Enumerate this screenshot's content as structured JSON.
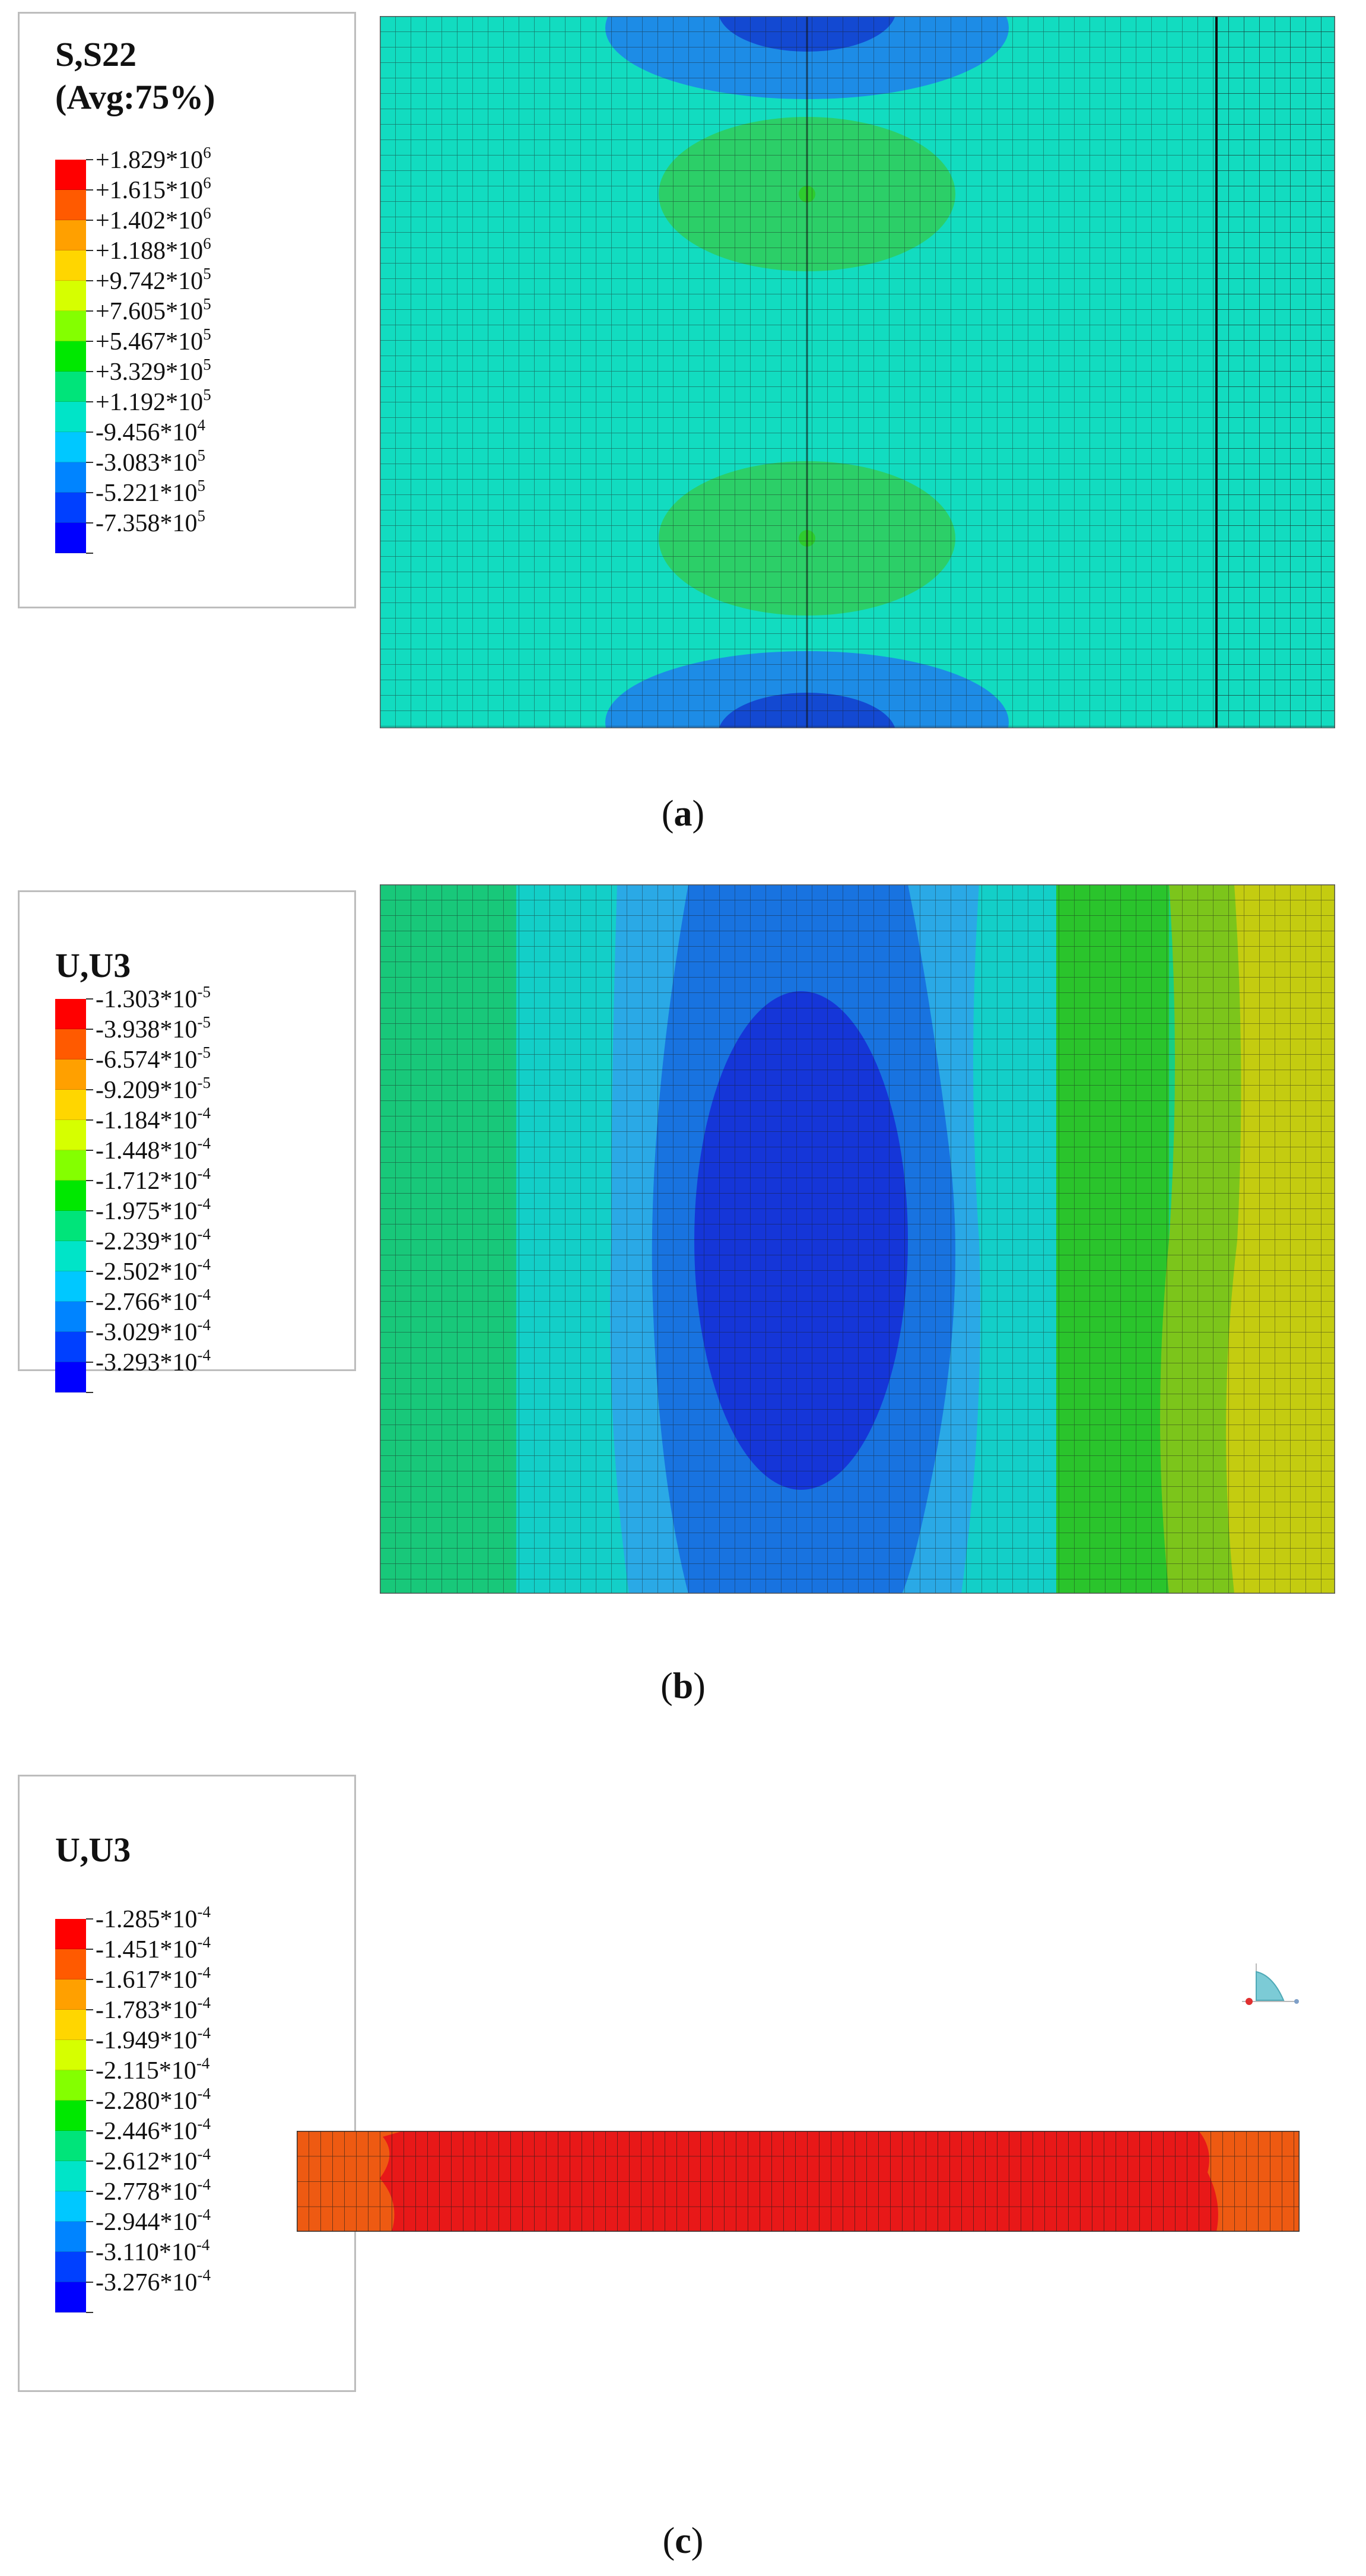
{
  "figures": [
    {
      "id": "a",
      "legend": {
        "title_lines": [
          "S,S22",
          "(Avg:75%)"
        ],
        "entries": [
          {
            "mantissa": "+1.829*10",
            "exp": "6"
          },
          {
            "mantissa": "+1.615*10",
            "exp": "6"
          },
          {
            "mantissa": "+1.402*10",
            "exp": "6"
          },
          {
            "mantissa": "+1.188*10",
            "exp": "6"
          },
          {
            "mantissa": "+9.742*10",
            "exp": "5"
          },
          {
            "mantissa": "+7.605*10",
            "exp": "5"
          },
          {
            "mantissa": "+5.467*10",
            "exp": "5"
          },
          {
            "mantissa": "+3.329*10",
            "exp": "5"
          },
          {
            "mantissa": "+1.192*10",
            "exp": "5"
          },
          {
            "mantissa": "-9.456*10",
            "exp": "4"
          },
          {
            "mantissa": "-3.083*10",
            "exp": "5"
          },
          {
            "mantissa": "-5.221*10",
            "exp": "5"
          },
          {
            "mantissa": "-7.358*10",
            "exp": "5"
          }
        ]
      },
      "caption": {
        "open": "(",
        "letter": "a",
        "close": ")"
      }
    },
    {
      "id": "b",
      "legend": {
        "title_lines": [
          "U,U3"
        ],
        "entries": [
          {
            "mantissa": "-1.303*10",
            "exp": "-5"
          },
          {
            "mantissa": "-3.938*10",
            "exp": "-5"
          },
          {
            "mantissa": "-6.574*10",
            "exp": "-5"
          },
          {
            "mantissa": "-9.209*10",
            "exp": "-5"
          },
          {
            "mantissa": "-1.184*10",
            "exp": "-4"
          },
          {
            "mantissa": "-1.448*10",
            "exp": "-4"
          },
          {
            "mantissa": "-1.712*10",
            "exp": "-4"
          },
          {
            "mantissa": "-1.975*10",
            "exp": "-4"
          },
          {
            "mantissa": "-2.239*10",
            "exp": "-4"
          },
          {
            "mantissa": "-2.502*10",
            "exp": "-4"
          },
          {
            "mantissa": "-2.766*10",
            "exp": "-4"
          },
          {
            "mantissa": "-3.029*10",
            "exp": "-4"
          },
          {
            "mantissa": "-3.293*10",
            "exp": "-4"
          }
        ]
      },
      "caption": {
        "open": "(",
        "letter": "b",
        "close": ")"
      }
    },
    {
      "id": "c",
      "legend": {
        "title_lines": [
          "U,U3"
        ],
        "entries": [
          {
            "mantissa": "-1.285*10",
            "exp": "-4"
          },
          {
            "mantissa": "-1.451*10",
            "exp": "-4"
          },
          {
            "mantissa": "-1.617*10",
            "exp": "-4"
          },
          {
            "mantissa": "-1.783*10",
            "exp": "-4"
          },
          {
            "mantissa": "-1.949*10",
            "exp": "-4"
          },
          {
            "mantissa": "-2.115*10",
            "exp": "-4"
          },
          {
            "mantissa": "-2.280*10",
            "exp": "-4"
          },
          {
            "mantissa": "-2.446*10",
            "exp": "-4"
          },
          {
            "mantissa": "-2.612*10",
            "exp": "-4"
          },
          {
            "mantissa": "-2.778*10",
            "exp": "-4"
          },
          {
            "mantissa": "-2.944*10",
            "exp": "-4"
          },
          {
            "mantissa": "-3.110*10",
            "exp": "-4"
          },
          {
            "mantissa": "-3.276*10",
            "exp": "-4"
          }
        ]
      },
      "caption": {
        "open": "(",
        "letter": "c",
        "close": ")"
      }
    }
  ],
  "colors": {
    "scale": [
      "#ff0000",
      "#ff5a00",
      "#ffa000",
      "#ffd600",
      "#d6ff00",
      "#84ff00",
      "#00e800",
      "#00e47a",
      "#00e4c8",
      "#00c8ff",
      "#0084ff",
      "#0040ff",
      "#0000ff"
    ],
    "mesh_line": "#1a1a1a",
    "legend_border": "#bdbdbd"
  },
  "icons": {
    "triad": "axis-triad-icon"
  }
}
